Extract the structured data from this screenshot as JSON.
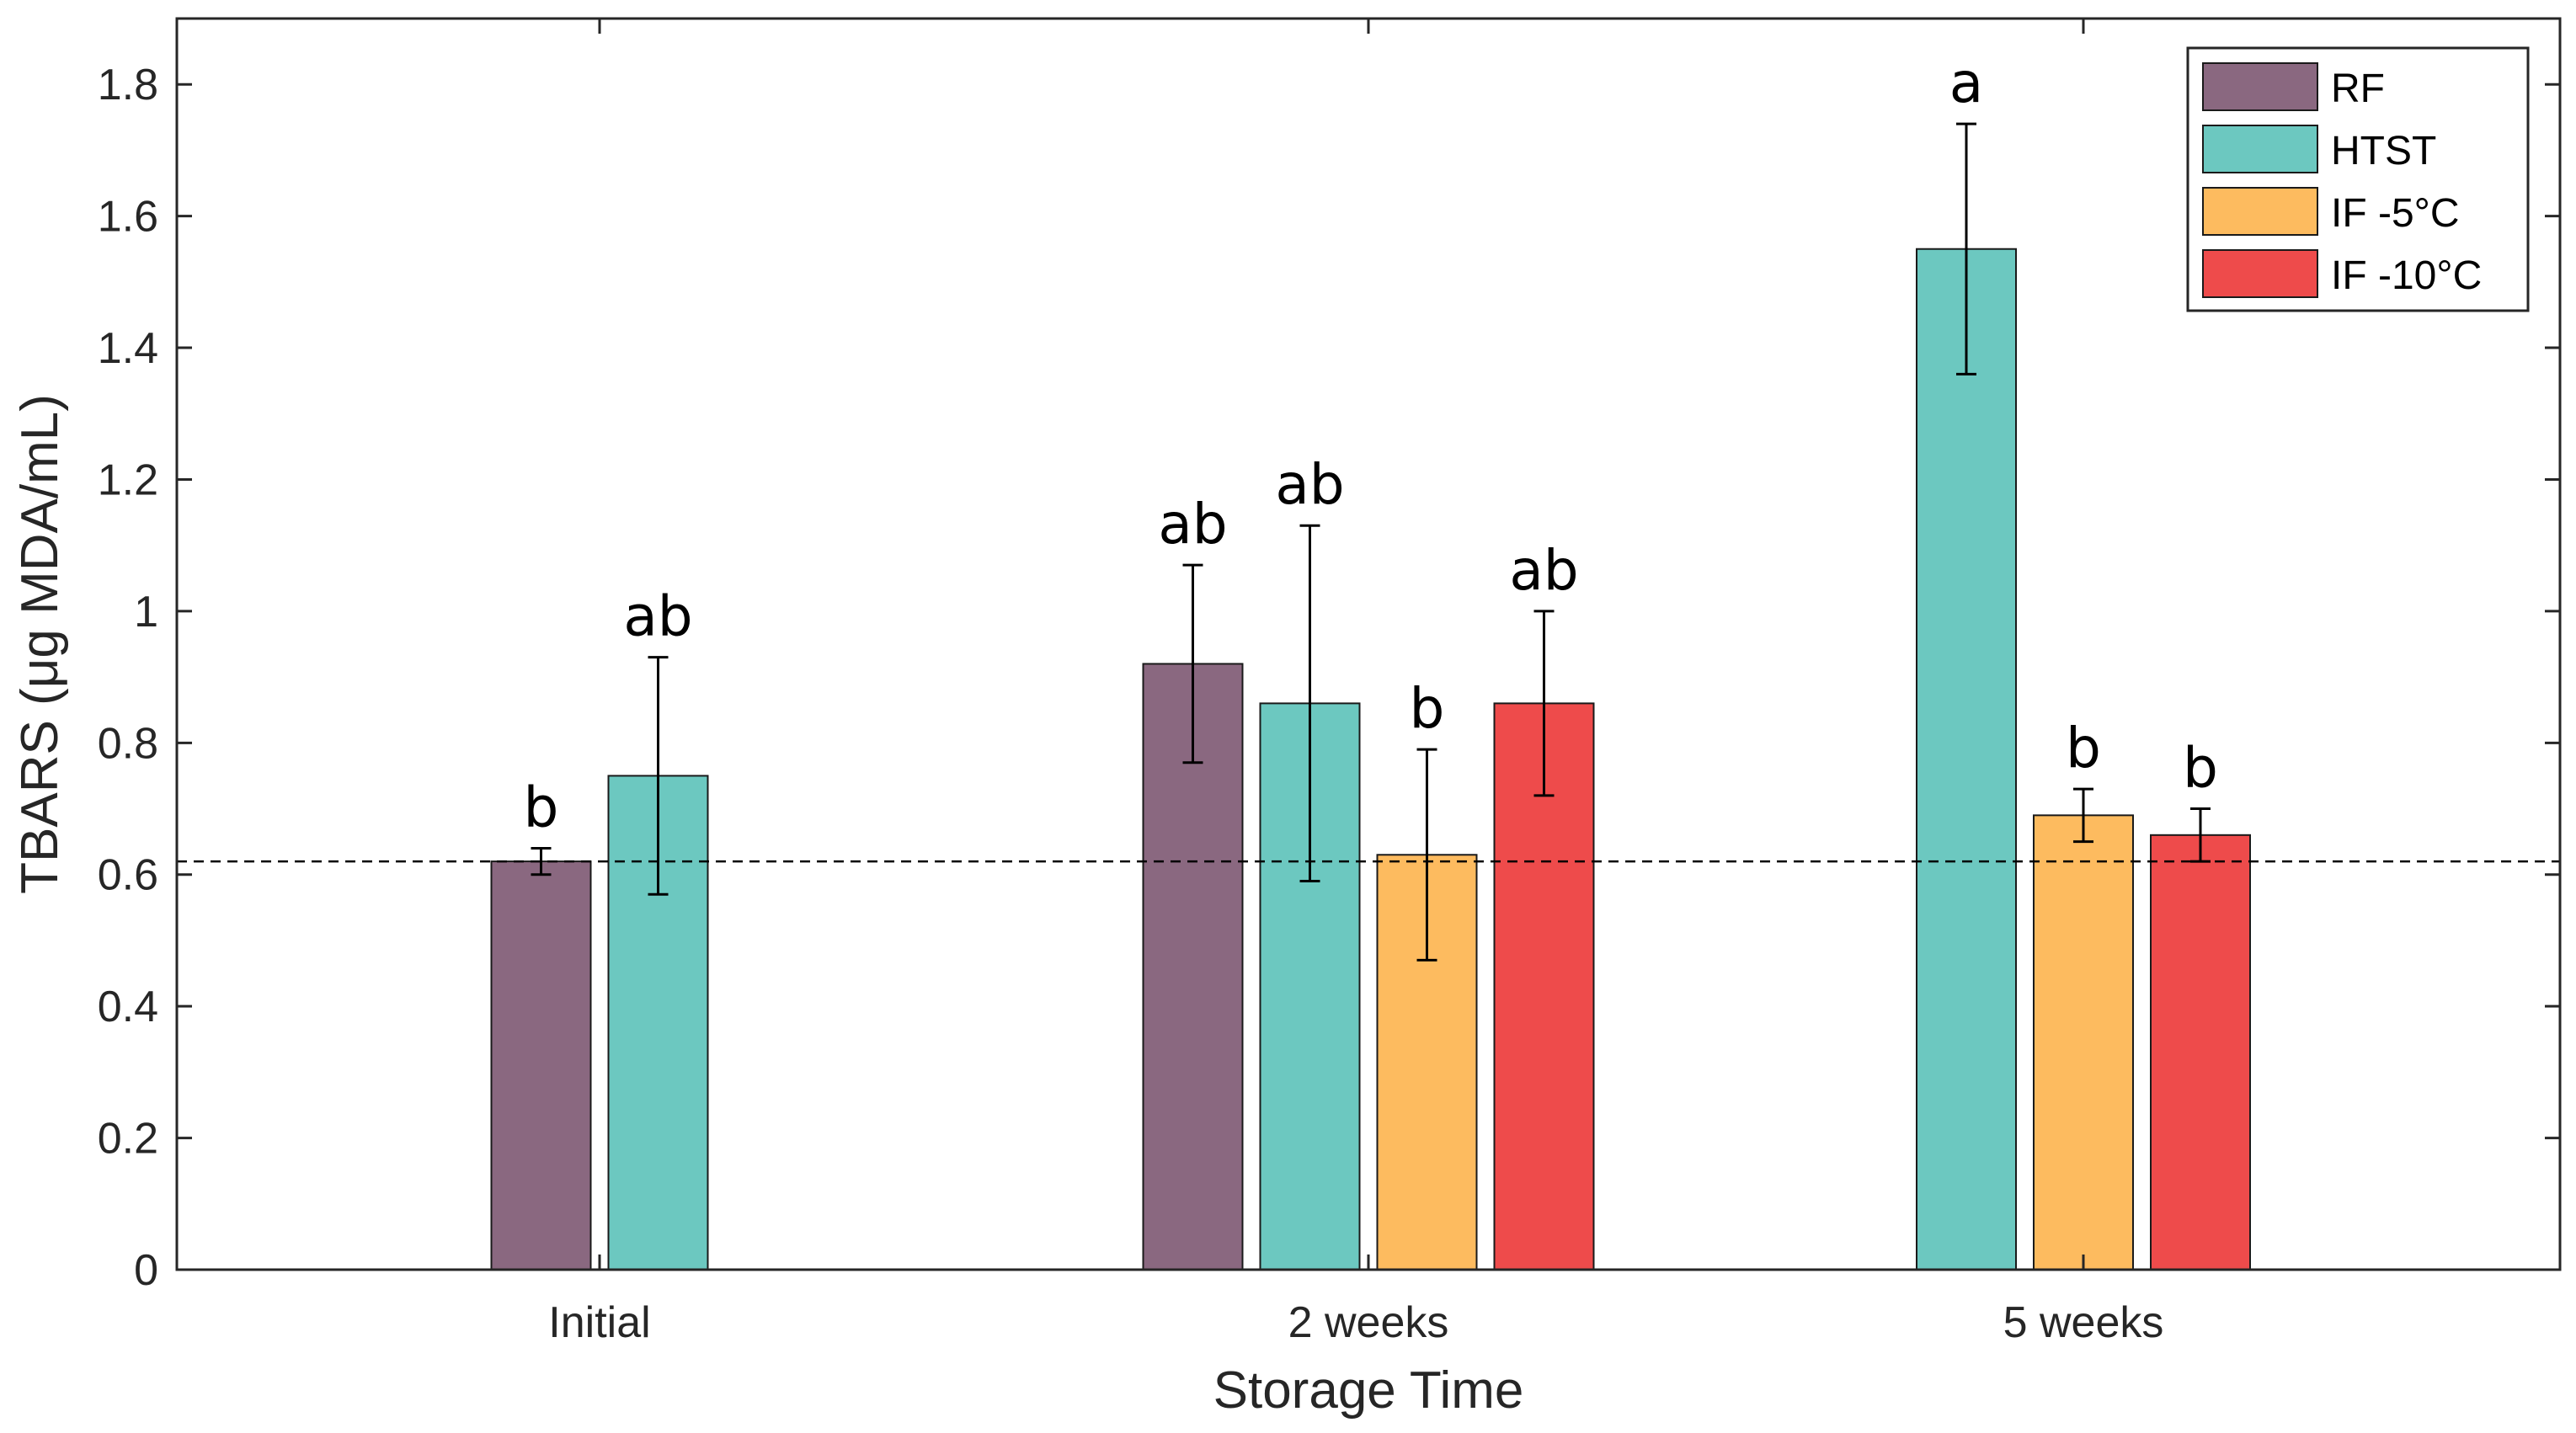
{
  "chart_data": {
    "type": "bar",
    "title": "",
    "xlabel": "Storage Time",
    "ylabel": "TBARS (μg MDA/mL)",
    "ylim": [
      0,
      1.9
    ],
    "yticks": [
      0,
      0.2,
      0.4,
      0.6,
      0.8,
      1.0,
      1.2,
      1.4,
      1.6,
      1.8
    ],
    "ytick_labels": [
      "0",
      "0.2",
      "0.4",
      "0.6",
      "0.8",
      "1",
      "1.2",
      "1.4",
      "1.6",
      "1.8"
    ],
    "grid": false,
    "legend_position": "top-right",
    "reference_line": {
      "y": 0.62,
      "style": "dashed"
    },
    "categories": [
      "Initial",
      "2 weeks",
      "5 weeks"
    ],
    "series": [
      {
        "name": "RF",
        "color": "#8a6880",
        "values": [
          0.62,
          0.92,
          null
        ],
        "error_low": [
          0.6,
          0.77,
          null
        ],
        "error_high": [
          0.64,
          1.07,
          null
        ],
        "labels": [
          "b",
          "ab",
          null
        ]
      },
      {
        "name": "HTST",
        "color": "#6cc8c0",
        "values": [
          0.75,
          0.86,
          1.55
        ],
        "error_low": [
          0.57,
          0.59,
          1.36
        ],
        "error_high": [
          0.93,
          1.13,
          1.74
        ],
        "labels": [
          "ab",
          "ab",
          "a"
        ]
      },
      {
        "name": "IF -5°C",
        "color": "#fdbb5f",
        "values": [
          null,
          0.63,
          0.69
        ],
        "error_low": [
          null,
          0.47,
          0.65
        ],
        "error_high": [
          null,
          0.79,
          0.73
        ],
        "labels": [
          null,
          "b",
          "b"
        ]
      },
      {
        "name": "IF -10°C",
        "color": "#ee4b4b",
        "values": [
          null,
          0.86,
          0.66
        ],
        "error_low": [
          null,
          0.72,
          0.62
        ],
        "error_high": [
          null,
          1.0,
          0.7
        ],
        "labels": [
          null,
          "ab",
          "b"
        ]
      }
    ]
  }
}
